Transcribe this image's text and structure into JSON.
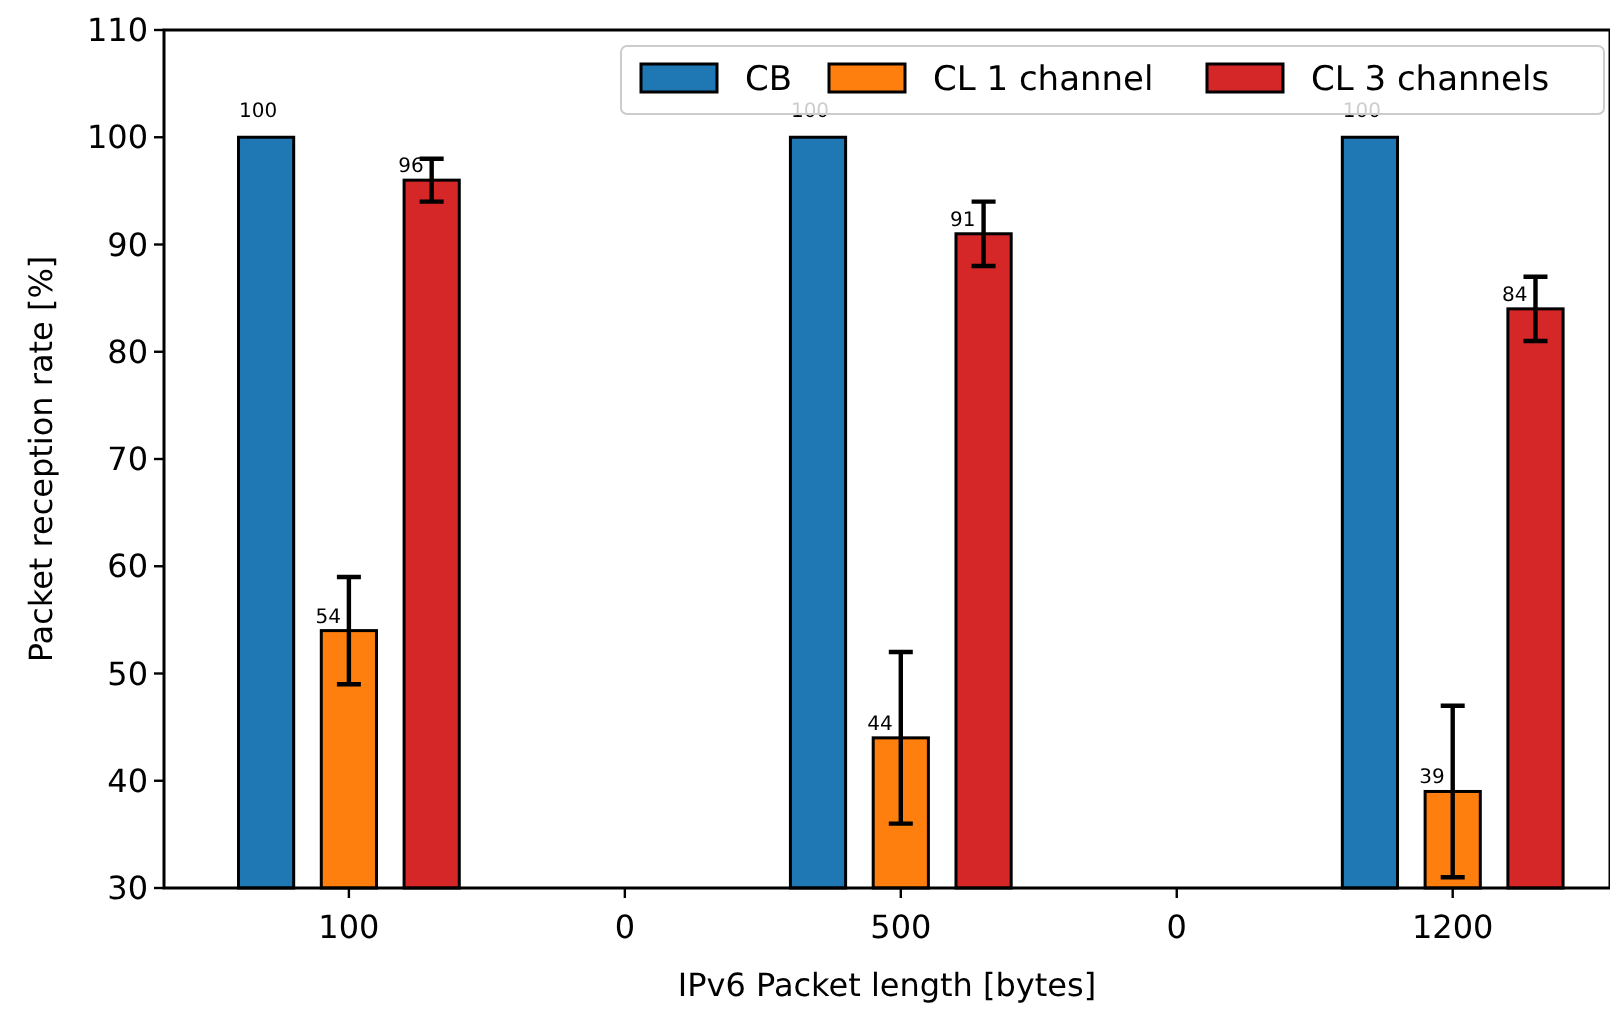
{
  "chart_data": {
    "type": "bar",
    "xlabel": "IPv6 Packet length [bytes]",
    "ylabel": "Packet reception rate [%]",
    "categories": [
      "100",
      "0",
      "500",
      "0",
      "1200"
    ],
    "series": [
      {
        "name": "CB",
        "color": "#1f77b4",
        "values": [
          100,
          null,
          100,
          null,
          100
        ]
      },
      {
        "name": "CL 1 channel",
        "color": "#ff7f0e",
        "values": [
          54,
          null,
          44,
          null,
          39
        ],
        "errors": [
          5,
          null,
          8,
          null,
          8
        ]
      },
      {
        "name": "CL 3 channels",
        "color": "#d62728",
        "values": [
          96,
          null,
          91,
          null,
          84
        ],
        "errors": [
          2,
          null,
          3,
          null,
          3
        ]
      }
    ],
    "ylim": [
      30,
      110
    ],
    "yticks": [
      30,
      40,
      50,
      60,
      70,
      80,
      90,
      100,
      110
    ],
    "data_labels": true,
    "legend": "top right",
    "grid": false
  }
}
